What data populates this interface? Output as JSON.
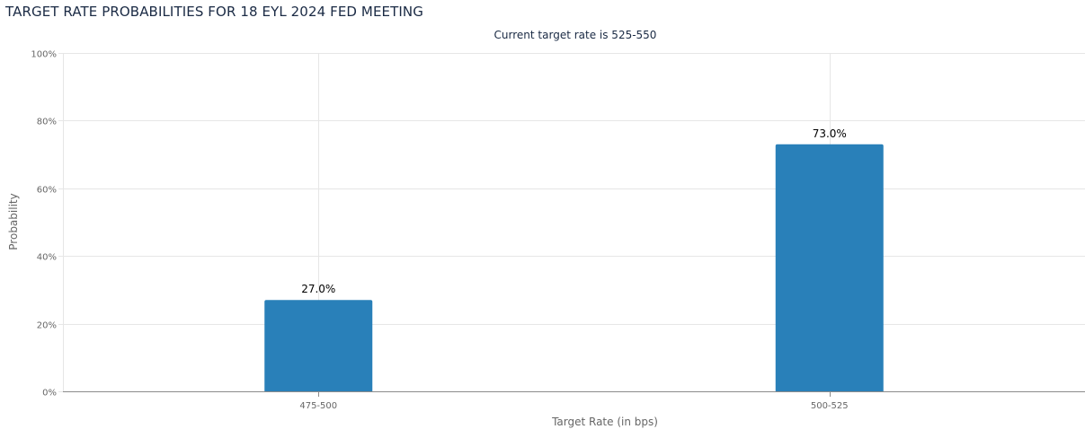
{
  "page": {
    "title": "TARGET RATE PROBABILITIES FOR 18 EYL 2024 FED MEETING"
  },
  "chart_data": {
    "type": "bar",
    "title": "Current target rate is 525-550",
    "xlabel": "Target Rate (in bps)",
    "ylabel": "Probability",
    "categories": [
      "475-500",
      "500-525"
    ],
    "values": [
      27.0,
      73.0
    ],
    "value_labels": [
      "27.0%",
      "73.0%"
    ],
    "ylim": [
      0,
      100
    ],
    "yticks": [
      0,
      20,
      40,
      60,
      80,
      100
    ],
    "ytick_labels": [
      "0%",
      "20%",
      "40%",
      "60%",
      "80%",
      "100%"
    ],
    "grid": true,
    "bar_color": "#2980b9",
    "grid_color": "#e6e6e6",
    "axis_color": "#8c8c8c"
  }
}
